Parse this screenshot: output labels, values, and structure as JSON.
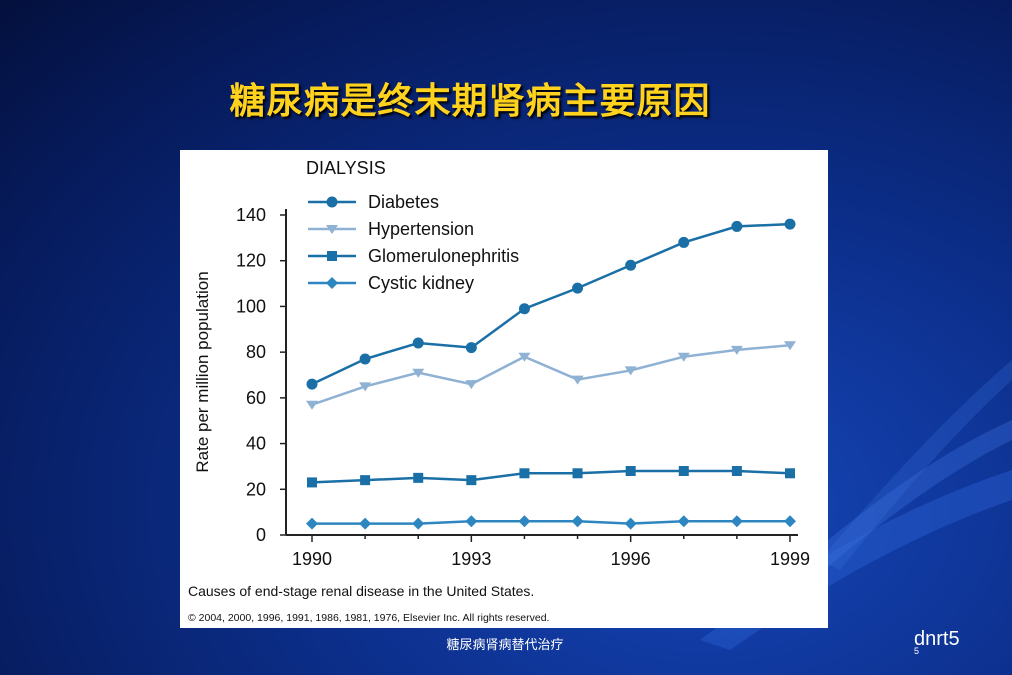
{
  "slide": {
    "title": "糖尿病是终末期肾病主要原因",
    "footer_center": "糖尿病肾病替代治疗",
    "footer_right": "dnrt5",
    "page_number": "5"
  },
  "colors": {
    "diabetes": "#1a6fa6",
    "hypertension": "#8fb1d3",
    "glomerulonephritis": "#1a6fa6",
    "cystic_kidney": "#2e86c1",
    "title": "#ffd21e"
  },
  "chart_data": {
    "type": "line",
    "title": "DIALYSIS",
    "xlabel": "",
    "ylabel": "Rate per million population",
    "x": [
      1990,
      1991,
      1992,
      1993,
      1994,
      1995,
      1996,
      1997,
      1998,
      1999
    ],
    "x_ticks": [
      "1990",
      "1993",
      "1996",
      "1999"
    ],
    "y_ticks": [
      "0",
      "20",
      "40",
      "60",
      "80",
      "100",
      "120",
      "140"
    ],
    "ylim": [
      0,
      140
    ],
    "xlim": [
      1990,
      1999
    ],
    "legend_position": "top-left",
    "caption": "Causes of end-stage renal disease in the United States.",
    "copyright": "© 2004, 2000, 1996, 1991, 1986, 1981, 1976, Elsevier Inc. All rights reserved.",
    "series": [
      {
        "name": "Diabetes",
        "marker": "circle",
        "values": [
          66,
          77,
          84,
          82,
          99,
          108,
          118,
          128,
          135,
          136
        ]
      },
      {
        "name": "Hypertension",
        "marker": "triangle-down",
        "values": [
          57,
          65,
          71,
          66,
          78,
          68,
          72,
          78,
          81,
          83
        ]
      },
      {
        "name": "Glomerulonephritis",
        "marker": "square",
        "values": [
          23,
          24,
          25,
          24,
          27,
          27,
          28,
          28,
          28,
          27
        ]
      },
      {
        "name": "Cystic kidney",
        "marker": "diamond",
        "values": [
          5,
          5,
          5,
          6,
          6,
          6,
          5,
          6,
          6,
          6
        ]
      }
    ]
  }
}
